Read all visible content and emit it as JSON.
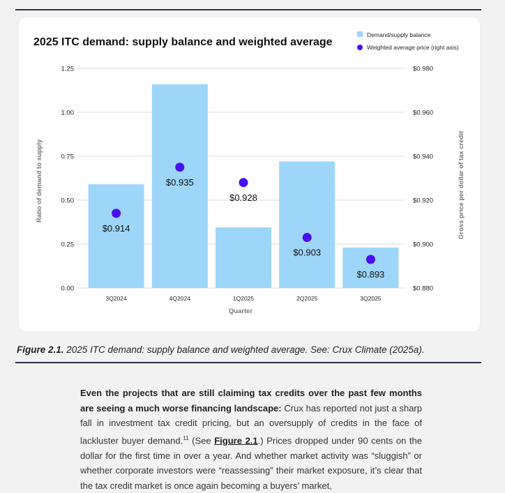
{
  "chart_data": {
    "type": "bar",
    "title": "2025 ITC demand: supply balance and weighted average",
    "xlabel": "Quarter",
    "ylabel": "Ratio of demand to supply",
    "y2label": "Gross price per dollar of tax credit",
    "categories": [
      "3Q2024",
      "4Q2024",
      "1Q2025",
      "2Q2025",
      "3Q2025"
    ],
    "series": [
      {
        "name": "Demand/supply balance",
        "type": "bar",
        "axis": "left",
        "color": "#9dd6f9",
        "values": [
          0.59,
          1.16,
          0.345,
          0.72,
          0.23
        ]
      },
      {
        "name": "Weighted average price (right axis)",
        "type": "scatter",
        "axis": "right",
        "color": "#4a0ff0",
        "values": [
          0.914,
          0.935,
          0.928,
          0.903,
          0.893
        ],
        "labels": [
          "$0.914",
          "$0.935",
          "$0.928",
          "$0.903",
          "$0.893"
        ]
      }
    ],
    "ylim": [
      0,
      1.25
    ],
    "yticks": [
      "0.00",
      "0.25",
      "0.50",
      "0.75",
      "1.00",
      "1.25"
    ],
    "y2lim": [
      0.88,
      0.98
    ],
    "y2ticks": [
      "$0.880",
      "$0.900",
      "$0.920",
      "$0.940",
      "$0.960",
      "$0.980"
    ],
    "grid": true,
    "legend_placement": "top-right"
  },
  "caption": {
    "label": "Figure 2.1.",
    "text": " 2025 ITC demand: supply balance and weighted average. See: Crux Climate (2025a)."
  },
  "paragraph": {
    "bold_lead": "Even the projects that are still claiming tax credits over the past few months are seeing a much worse financing landscape:",
    "text1": " Crux has reported not just a sharp fall in investment tax credit pricing, but an oversupply of credits in the face of lackluster buyer demand.",
    "footnote": "11",
    "text2": " (See ",
    "link": "Figure 2.1",
    "text3": ".) Prices dropped under 90 cents on the dollar for the first time in over a year. And whether market activity was “sluggish” or whether corporate investors were “reassessing” their market exposure, it’s clear that the tax credit market is once again becoming a buyers’ market,"
  }
}
